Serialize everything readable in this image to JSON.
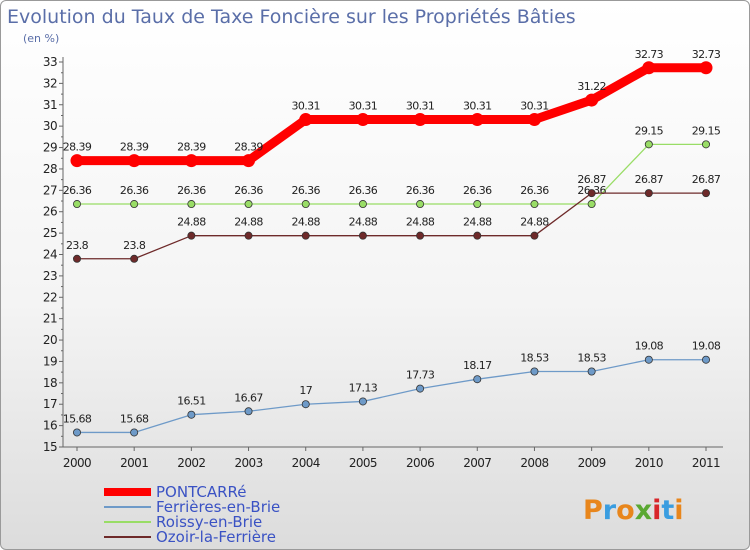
{
  "chart_data": {
    "type": "line",
    "title": "Evolution du Taux de Taxe Foncière sur les Propriétés Bâties",
    "subtitle": "(en %)",
    "xlabel": "",
    "ylabel": "(en %)",
    "ylim": [
      15,
      33
    ],
    "grid": false,
    "legend_position": "bottom-left",
    "x": [
      "2000",
      "2001",
      "2002",
      "2003",
      "2004",
      "2005",
      "2006",
      "2007",
      "2008",
      "2009",
      "2010",
      "2011"
    ],
    "y_ticks": [
      "15",
      "16",
      "17",
      "18",
      "19",
      "20",
      "21",
      "22",
      "23",
      "24",
      "25",
      "26",
      "27",
      "28",
      "29",
      "30",
      "31",
      "32",
      "33"
    ],
    "series": [
      {
        "name": "PONTCARRé",
        "color": "#ff0000",
        "values": [
          28.39,
          28.39,
          28.39,
          28.39,
          30.31,
          30.31,
          30.31,
          30.31,
          30.31,
          31.22,
          32.73,
          32.73
        ],
        "labels": [
          "28.39",
          "28.39",
          "28.39",
          "28.39",
          "30.31",
          "30.31",
          "30.31",
          "30.31",
          "30.31",
          "31.22",
          "32.73",
          "32.73"
        ]
      },
      {
        "name": "Ferrières-en-Brie",
        "color": "#6e9ac8",
        "values": [
          15.68,
          15.68,
          16.51,
          16.67,
          17,
          17.13,
          17.73,
          18.17,
          18.53,
          18.53,
          19.08,
          19.08
        ],
        "labels": [
          "15.68",
          "15.68",
          "16.51",
          "16.67",
          "17",
          "17.13",
          "17.73",
          "18.17",
          "18.53",
          "18.53",
          "19.08",
          "19.08"
        ]
      },
      {
        "name": "Roissy-en-Brie",
        "color": "#99dd66",
        "values": [
          26.36,
          26.36,
          26.36,
          26.36,
          26.36,
          26.36,
          26.36,
          26.36,
          26.36,
          26.36,
          29.15,
          29.15
        ],
        "labels": [
          "26.36",
          "26.36",
          "26.36",
          "26.36",
          "26.36",
          "26.36",
          "26.36",
          "26.36",
          "26.36",
          "26.36",
          "29.15",
          "29.15"
        ]
      },
      {
        "name": "Ozoir-la-Ferrière",
        "color": "#6e2a2a",
        "values": [
          23.8,
          23.8,
          24.88,
          24.88,
          24.88,
          24.88,
          24.88,
          24.88,
          24.88,
          26.87,
          26.87,
          26.87
        ],
        "labels": [
          "23.8",
          "23.8",
          "24.88",
          "24.88",
          "24.88",
          "24.88",
          "24.88",
          "24.88",
          "24.88",
          "26.87",
          "26.87",
          "26.87"
        ]
      }
    ]
  },
  "logo": {
    "letters": [
      "P",
      "r",
      "o",
      "x",
      "i",
      "t",
      "i"
    ],
    "colors": [
      "#e8861c",
      "#3a9de0",
      "#e8861c",
      "#5aa832",
      "#d8262a",
      "#3a9de0",
      "#e8861c"
    ]
  }
}
